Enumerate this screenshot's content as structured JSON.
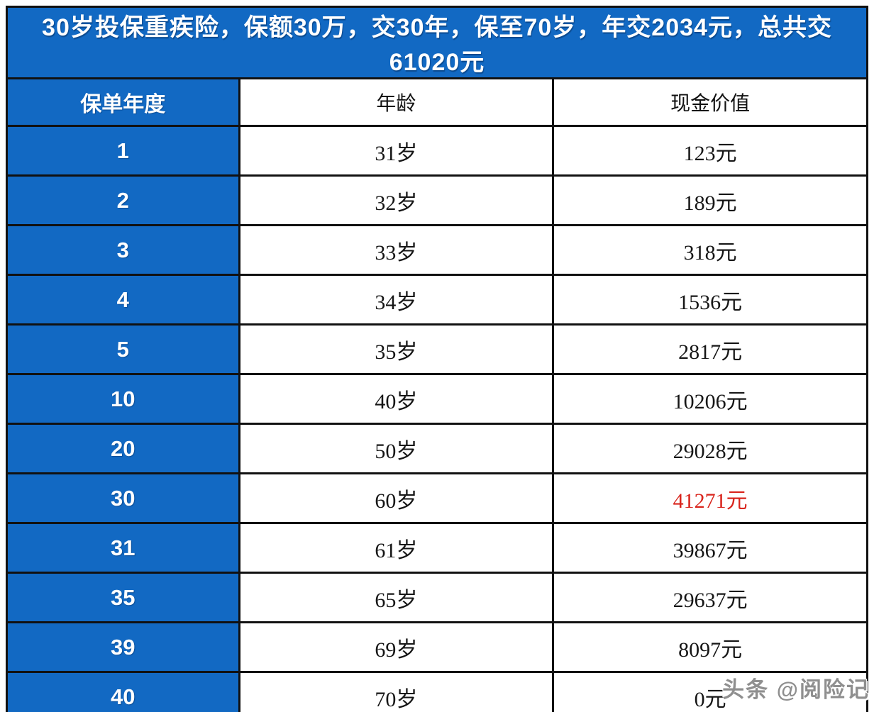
{
  "title": "30岁投保重疾险，保额30万，交30年，保至70岁，年交2034元，总共交61020元",
  "table": {
    "columns": [
      "保单年度",
      "年龄",
      "现金价值"
    ],
    "rows": [
      {
        "year": "1",
        "age": "31岁",
        "value": "123元",
        "highlight": false
      },
      {
        "year": "2",
        "age": "32岁",
        "value": "189元",
        "highlight": false
      },
      {
        "year": "3",
        "age": "33岁",
        "value": "318元",
        "highlight": false
      },
      {
        "year": "4",
        "age": "34岁",
        "value": "1536元",
        "highlight": false
      },
      {
        "year": "5",
        "age": "35岁",
        "value": "2817元",
        "highlight": false
      },
      {
        "year": "10",
        "age": "40岁",
        "value": "10206元",
        "highlight": false
      },
      {
        "year": "20",
        "age": "50岁",
        "value": "29028元",
        "highlight": false
      },
      {
        "year": "30",
        "age": "60岁",
        "value": "41271元",
        "highlight": true
      },
      {
        "year": "31",
        "age": "61岁",
        "value": "39867元",
        "highlight": false
      },
      {
        "year": "35",
        "age": "65岁",
        "value": "29637元",
        "highlight": false
      },
      {
        "year": "39",
        "age": "69岁",
        "value": "8097元",
        "highlight": false
      },
      {
        "year": "40",
        "age": "70岁",
        "value": "0元",
        "highlight": false
      }
    ]
  },
  "watermark": "头条 @阅险记",
  "colors": {
    "blue": "#1269c3",
    "red": "#d9251d",
    "border": "#111111"
  }
}
